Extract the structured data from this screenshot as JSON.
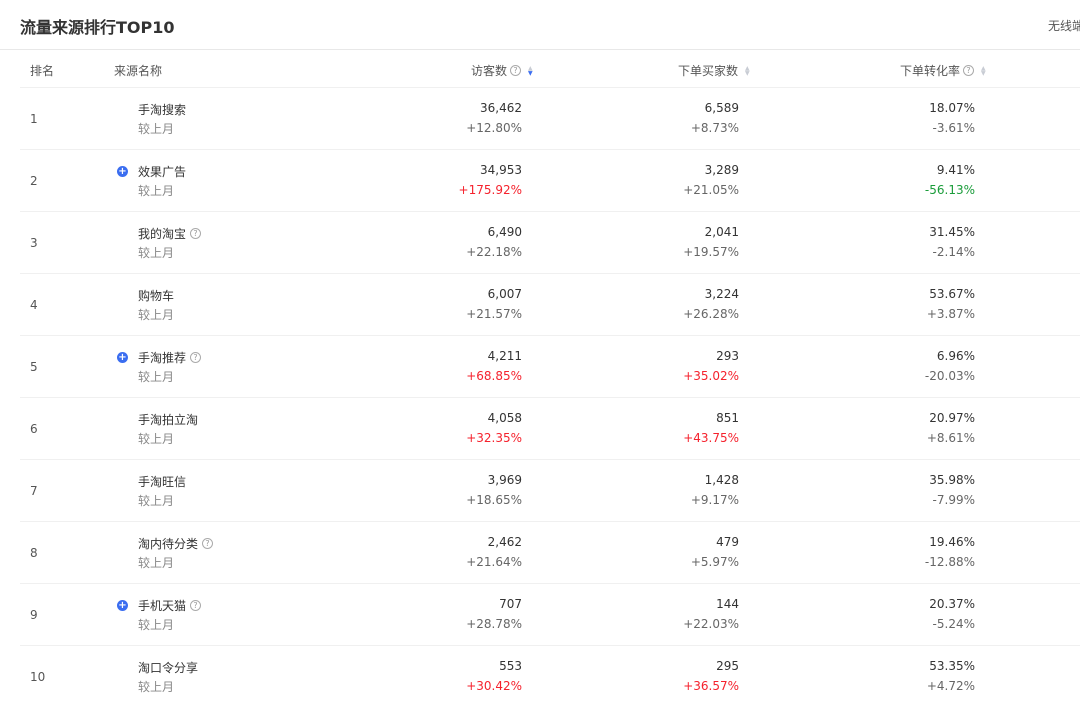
{
  "title": "流量来源排行TOP10",
  "right_label": "无线端",
  "columns": {
    "rank": "排名",
    "source": "来源名称",
    "visitors": "访客数",
    "buyers": "下单买家数",
    "rate": "下单转化率"
  },
  "compare_label": "较上月",
  "colors": {
    "accent": "#3a6df0",
    "up": "#f5222d",
    "down": "#1a9c3a"
  },
  "rows": [
    {
      "rank": "1",
      "name": "手淘搜索",
      "plus": false,
      "help": false,
      "visitors": "36,462",
      "visitors_chg": "+12.80%",
      "vc": "",
      "buyers": "6,589",
      "buyers_chg": "+8.73%",
      "bc": "",
      "rate": "18.07%",
      "rate_chg": "-3.61%",
      "rc": ""
    },
    {
      "rank": "2",
      "name": "效果广告",
      "plus": true,
      "help": false,
      "visitors": "34,953",
      "visitors_chg": "+175.92%",
      "vc": "red",
      "buyers": "3,289",
      "buyers_chg": "+21.05%",
      "bc": "",
      "rate": "9.41%",
      "rate_chg": "-56.13%",
      "rc": "green"
    },
    {
      "rank": "3",
      "name": "我的淘宝",
      "plus": false,
      "help": true,
      "visitors": "6,490",
      "visitors_chg": "+22.18%",
      "vc": "",
      "buyers": "2,041",
      "buyers_chg": "+19.57%",
      "bc": "",
      "rate": "31.45%",
      "rate_chg": "-2.14%",
      "rc": ""
    },
    {
      "rank": "4",
      "name": "购物车",
      "plus": false,
      "help": false,
      "visitors": "6,007",
      "visitors_chg": "+21.57%",
      "vc": "",
      "buyers": "3,224",
      "buyers_chg": "+26.28%",
      "bc": "",
      "rate": "53.67%",
      "rate_chg": "+3.87%",
      "rc": ""
    },
    {
      "rank": "5",
      "name": "手淘推荐",
      "plus": true,
      "help": true,
      "visitors": "4,211",
      "visitors_chg": "+68.85%",
      "vc": "red",
      "buyers": "293",
      "buyers_chg": "+35.02%",
      "bc": "red",
      "rate": "6.96%",
      "rate_chg": "-20.03%",
      "rc": ""
    },
    {
      "rank": "6",
      "name": "手淘拍立淘",
      "plus": false,
      "help": false,
      "visitors": "4,058",
      "visitors_chg": "+32.35%",
      "vc": "red",
      "buyers": "851",
      "buyers_chg": "+43.75%",
      "bc": "red",
      "rate": "20.97%",
      "rate_chg": "+8.61%",
      "rc": ""
    },
    {
      "rank": "7",
      "name": "手淘旺信",
      "plus": false,
      "help": false,
      "visitors": "3,969",
      "visitors_chg": "+18.65%",
      "vc": "",
      "buyers": "1,428",
      "buyers_chg": "+9.17%",
      "bc": "",
      "rate": "35.98%",
      "rate_chg": "-7.99%",
      "rc": ""
    },
    {
      "rank": "8",
      "name": "淘内待分类",
      "plus": false,
      "help": true,
      "visitors": "2,462",
      "visitors_chg": "+21.64%",
      "vc": "",
      "buyers": "479",
      "buyers_chg": "+5.97%",
      "bc": "",
      "rate": "19.46%",
      "rate_chg": "-12.88%",
      "rc": ""
    },
    {
      "rank": "9",
      "name": "手机天猫",
      "plus": true,
      "help": true,
      "visitors": "707",
      "visitors_chg": "+28.78%",
      "vc": "",
      "buyers": "144",
      "buyers_chg": "+22.03%",
      "bc": "",
      "rate": "20.37%",
      "rate_chg": "-5.24%",
      "rc": ""
    },
    {
      "rank": "10",
      "name": "淘口令分享",
      "plus": false,
      "help": false,
      "visitors": "553",
      "visitors_chg": "+30.42%",
      "vc": "red",
      "buyers": "295",
      "buyers_chg": "+36.57%",
      "bc": "red",
      "rate": "53.35%",
      "rate_chg": "+4.72%",
      "rc": ""
    }
  ]
}
